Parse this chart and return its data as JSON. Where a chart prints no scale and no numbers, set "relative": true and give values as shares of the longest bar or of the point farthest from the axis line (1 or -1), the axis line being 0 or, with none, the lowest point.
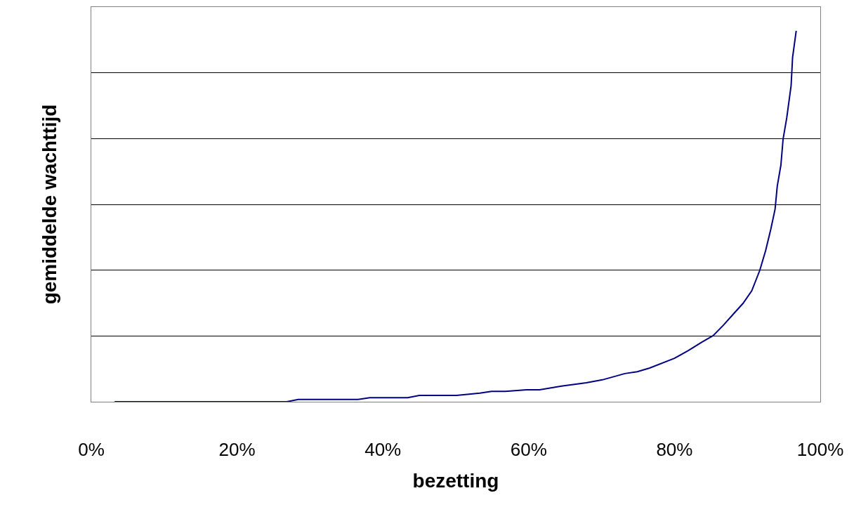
{
  "chart_data": {
    "type": "line",
    "xlabel": "bezetting",
    "ylabel": "gemiddelde wachttijd",
    "relative": true,
    "grid": "y",
    "marker": "none",
    "line_style": "solid",
    "xlim": [
      0,
      100
    ],
    "xticks": [
      {
        "value": 0,
        "label": "0%"
      },
      {
        "value": 20,
        "label": "20%"
      },
      {
        "value": 40,
        "label": "40%"
      },
      {
        "value": 60,
        "label": "60%"
      },
      {
        "value": 80,
        "label": "80%"
      },
      {
        "value": 100,
        "label": "100%"
      }
    ],
    "series": [
      {
        "color": "#000080",
        "x": [
          3.2,
          26.8,
          28.4,
          36.6,
          38.2,
          43.4,
          45.0,
          50.1,
          53.3,
          54.9,
          56.8,
          59.7,
          61.5,
          64.5,
          67.9,
          70.1,
          73.2,
          74.9,
          76.6,
          80.0,
          81.9,
          83.8,
          85.3,
          86.7,
          88.2,
          89.4,
          90.6,
          91.7,
          92.5,
          93.2,
          93.8,
          94.1,
          94.6,
          94.9,
          95.4,
          96.0,
          96.2,
          96.7
        ],
        "values": [
          0,
          0,
          0.006,
          0.006,
          0.011,
          0.011,
          0.017,
          0.017,
          0.023,
          0.028,
          0.028,
          0.032,
          0.032,
          0.042,
          0.051,
          0.059,
          0.076,
          0.081,
          0.091,
          0.117,
          0.138,
          0.161,
          0.178,
          0.206,
          0.239,
          0.265,
          0.299,
          0.354,
          0.407,
          0.464,
          0.519,
          0.581,
          0.638,
          0.708,
          0.765,
          0.852,
          0.928,
          1.0
        ]
      }
    ]
  }
}
